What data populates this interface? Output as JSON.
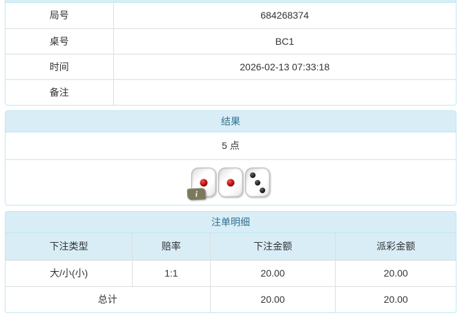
{
  "info_table": {
    "rows": [
      {
        "label": "局号",
        "value": "684268374"
      },
      {
        "label": "桌号",
        "value": "BC1"
      },
      {
        "label": "时间",
        "value": "2026-02-13 07:33:18"
      },
      {
        "label": "备注",
        "value": ""
      }
    ]
  },
  "result_panel": {
    "title": "结果",
    "points": "5 点",
    "dice": [
      1,
      1,
      3
    ],
    "info_badge": "i"
  },
  "bets_panel": {
    "title": "注单明细",
    "columns": [
      "下注类型",
      "赔率",
      "下注金额",
      "派彩金额"
    ],
    "rows": [
      {
        "bet_type": "大/小(小)",
        "odds": "1:1",
        "bet_amount": "20.00",
        "payout": "20.00"
      }
    ],
    "total": {
      "label": "总计",
      "bet_amount": "20.00",
      "payout": "20.00"
    }
  },
  "colors": {
    "panel_border": "#bce8f1",
    "panel_heading_bg": "#d9edf7",
    "panel_heading_text": "#31708f",
    "table_border": "#dddddd",
    "body_text": "#333333",
    "odds_red": "#ff0000",
    "die_pip_red": "#a00000",
    "die_pip_black": "#101010"
  }
}
